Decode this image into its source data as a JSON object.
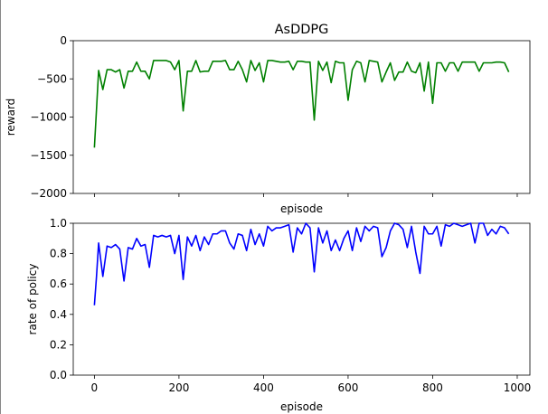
{
  "chart_data": [
    {
      "type": "line",
      "title": "AsDDPG",
      "xlabel": "episode",
      "ylabel": "reward",
      "xlim": [
        -50,
        1030
      ],
      "ylim": [
        -2000,
        0
      ],
      "xticks": [
        0,
        200,
        400,
        600,
        800,
        1000
      ],
      "xtick_labels_visible": false,
      "yticks": [
        0,
        -500,
        -1000,
        -1500,
        -2000
      ],
      "ytick_labels": [
        "0",
        "−500",
        "−1000",
        "−1500",
        "−2000"
      ],
      "grid": false,
      "legend": "none",
      "series": [
        {
          "color": "#008000",
          "x": [
            0,
            5,
            10,
            20,
            30,
            40,
            50,
            60,
            70,
            80,
            90,
            100,
            110,
            120,
            130,
            140,
            150,
            160,
            170,
            180,
            190,
            200,
            210,
            220,
            230,
            240,
            250,
            260,
            270,
            280,
            290,
            300,
            310,
            320,
            330,
            340,
            350,
            360,
            370,
            380,
            390,
            400,
            410,
            420,
            430,
            440,
            450,
            460,
            470,
            480,
            490,
            500,
            510,
            520,
            530,
            540,
            550,
            560,
            570,
            580,
            590,
            600,
            610,
            620,
            630,
            640,
            650,
            660,
            670,
            680,
            690,
            700,
            710,
            720,
            730,
            740,
            750,
            760,
            770,
            780,
            790,
            800,
            810,
            820,
            830,
            840,
            850,
            860,
            870,
            880,
            890,
            900,
            910,
            920,
            930,
            940,
            950,
            960,
            970,
            980
          ],
          "y": [
            -1400,
            -900,
            -390,
            -640,
            -380,
            -380,
            -410,
            -380,
            -620,
            -400,
            -400,
            -280,
            -400,
            -400,
            -500,
            -260,
            -260,
            -260,
            -260,
            -280,
            -380,
            -260,
            -920,
            -400,
            -400,
            -260,
            -410,
            -400,
            -400,
            -270,
            -270,
            -270,
            -260,
            -380,
            -380,
            -270,
            -380,
            -540,
            -260,
            -390,
            -290,
            -540,
            -260,
            -260,
            -270,
            -280,
            -280,
            -270,
            -380,
            -270,
            -270,
            -280,
            -280,
            -1040,
            -270,
            -390,
            -280,
            -550,
            -270,
            -290,
            -290,
            -780,
            -380,
            -270,
            -290,
            -540,
            -260,
            -270,
            -280,
            -540,
            -410,
            -290,
            -520,
            -410,
            -410,
            -280,
            -400,
            -420,
            -290,
            -660,
            -280,
            -820,
            -290,
            -290,
            -400,
            -290,
            -290,
            -400,
            -280,
            -280,
            -280,
            -280,
            -400,
            -290,
            -290,
            -290,
            -280,
            -280,
            -290,
            -410
          ]
        }
      ]
    },
    {
      "type": "line",
      "title": "",
      "xlabel": "episode",
      "ylabel": "rate of policy",
      "xlim": [
        -50,
        1030
      ],
      "ylim": [
        0.0,
        1.0
      ],
      "xticks": [
        0,
        200,
        400,
        600,
        800,
        1000
      ],
      "xtick_labels": [
        "0",
        "200",
        "400",
        "600",
        "800",
        "1000"
      ],
      "yticks": [
        0.0,
        0.2,
        0.4,
        0.6,
        0.8,
        1.0
      ],
      "ytick_labels": [
        "0.0",
        "0.2",
        "0.4",
        "0.6",
        "0.8",
        "1.0"
      ],
      "grid": false,
      "legend": "none",
      "series": [
        {
          "color": "#0000ff",
          "x": [
            0,
            5,
            10,
            20,
            30,
            40,
            50,
            60,
            70,
            80,
            90,
            100,
            110,
            120,
            130,
            140,
            150,
            160,
            170,
            180,
            190,
            200,
            210,
            220,
            230,
            240,
            250,
            260,
            270,
            280,
            290,
            300,
            310,
            320,
            330,
            340,
            350,
            360,
            370,
            380,
            390,
            400,
            410,
            420,
            430,
            440,
            450,
            460,
            470,
            480,
            490,
            500,
            510,
            520,
            530,
            540,
            550,
            560,
            570,
            580,
            590,
            600,
            610,
            620,
            630,
            640,
            650,
            660,
            670,
            680,
            690,
            700,
            710,
            720,
            730,
            740,
            750,
            760,
            770,
            780,
            790,
            800,
            810,
            820,
            830,
            840,
            850,
            860,
            870,
            880,
            890,
            900,
            910,
            920,
            930,
            940,
            950,
            960,
            970,
            980
          ],
          "y": [
            0.46,
            0.65,
            0.87,
            0.65,
            0.85,
            0.84,
            0.86,
            0.83,
            0.62,
            0.84,
            0.83,
            0.9,
            0.85,
            0.86,
            0.71,
            0.92,
            0.91,
            0.92,
            0.91,
            0.92,
            0.8,
            0.92,
            0.63,
            0.91,
            0.85,
            0.92,
            0.82,
            0.91,
            0.86,
            0.93,
            0.93,
            0.95,
            0.95,
            0.87,
            0.83,
            0.93,
            0.92,
            0.82,
            0.96,
            0.86,
            0.93,
            0.85,
            0.98,
            0.95,
            0.97,
            0.97,
            0.98,
            0.99,
            0.81,
            0.97,
            0.93,
            1.0,
            0.97,
            0.68,
            0.97,
            0.87,
            0.95,
            0.82,
            0.89,
            0.82,
            0.9,
            0.95,
            0.82,
            0.97,
            0.88,
            0.98,
            0.95,
            0.98,
            0.97,
            0.78,
            0.84,
            0.95,
            1.0,
            0.99,
            0.96,
            0.84,
            0.98,
            0.81,
            0.67,
            0.98,
            0.93,
            0.93,
            0.98,
            0.85,
            0.99,
            0.98,
            1.0,
            0.99,
            0.98,
            0.99,
            1.0,
            0.87,
            1.0,
            1.0,
            0.92,
            0.96,
            0.93,
            0.98,
            0.97,
            0.93
          ]
        }
      ]
    }
  ]
}
